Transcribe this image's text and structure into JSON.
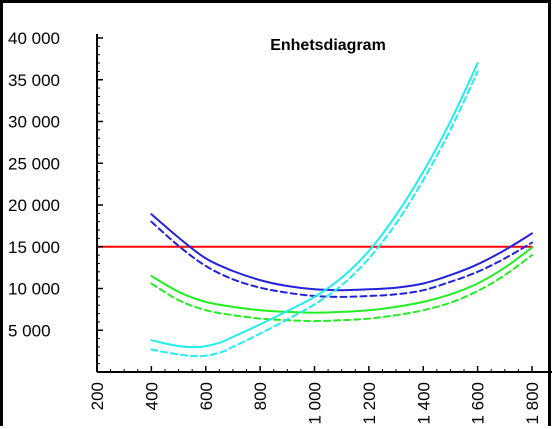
{
  "chart_data": {
    "type": "line",
    "title": "Enhetsdiagram",
    "xlabel": "",
    "ylabel": "",
    "xlim": [
      200,
      1800
    ],
    "ylim": [
      0,
      40000
    ],
    "x_ticks": [
      200,
      400,
      600,
      800,
      1000,
      1200,
      1400,
      1600,
      1800
    ],
    "x_tick_labels": [
      "200",
      "400",
      "600",
      "800",
      "1 000",
      "1 200",
      "1 400",
      "1 600",
      "1 800"
    ],
    "y_ticks": [
      5000,
      10000,
      15000,
      20000,
      25000,
      30000,
      35000,
      40000
    ],
    "y_tick_labels": [
      "5 000",
      "10 000",
      "15 000",
      "20 000",
      "25 000",
      "30 000",
      "35 000",
      "40 000"
    ],
    "grid": false,
    "legend": "none",
    "series": [
      {
        "color": "#ff0000",
        "dashed": false,
        "width": 2,
        "x": [
          200,
          1800
        ],
        "y": [
          15000,
          15000
        ]
      },
      {
        "color": "#2222dd",
        "dashed": false,
        "width": 2,
        "x": [
          400,
          500,
          600,
          700,
          800,
          900,
          1000,
          1100,
          1200,
          1300,
          1400,
          1500,
          1600,
          1700,
          1800
        ],
        "y": [
          18900,
          16100,
          13600,
          12100,
          11000,
          10300,
          9900,
          9800,
          9900,
          10100,
          10600,
          11600,
          12900,
          14600,
          16600
        ]
      },
      {
        "color": "#2222dd",
        "dashed": true,
        "width": 2,
        "x": [
          400,
          500,
          600,
          700,
          800,
          900,
          1000,
          1100,
          1200,
          1300,
          1400,
          1500,
          1600,
          1700,
          1800
        ],
        "y": [
          18000,
          15100,
          12700,
          11100,
          10100,
          9500,
          9100,
          9000,
          9100,
          9300,
          9800,
          10800,
          12000,
          13600,
          15500
        ]
      },
      {
        "color": "#22ee22",
        "dashed": false,
        "width": 2,
        "x": [
          400,
          500,
          600,
          700,
          800,
          900,
          1000,
          1100,
          1200,
          1300,
          1400,
          1500,
          1600,
          1700,
          1800
        ],
        "y": [
          11500,
          9600,
          8400,
          7800,
          7400,
          7200,
          7100,
          7200,
          7400,
          7800,
          8400,
          9300,
          10600,
          12500,
          14900
        ]
      },
      {
        "color": "#22ee22",
        "dashed": true,
        "width": 2,
        "x": [
          400,
          500,
          600,
          700,
          800,
          900,
          1000,
          1100,
          1200,
          1300,
          1400,
          1500,
          1600,
          1700,
          1800
        ],
        "y": [
          10600,
          8600,
          7400,
          6800,
          6400,
          6200,
          6100,
          6200,
          6400,
          6800,
          7400,
          8300,
          9700,
          11600,
          14000
        ]
      },
      {
        "color": "#22eeee",
        "dashed": false,
        "width": 2,
        "x": [
          400,
          500,
          580,
          650,
          700,
          800,
          900,
          1000,
          1100,
          1200,
          1300,
          1400,
          1500,
          1600
        ],
        "y": [
          3800,
          3100,
          3000,
          3500,
          4200,
          5700,
          7300,
          9000,
          11300,
          14500,
          18800,
          24000,
          30000,
          37000
        ]
      },
      {
        "color": "#22eeee",
        "dashed": true,
        "width": 2,
        "x": [
          400,
          500,
          580,
          650,
          700,
          800,
          900,
          1000,
          1100,
          1200,
          1300,
          1400,
          1500,
          1600
        ],
        "y": [
          2700,
          2100,
          1900,
          2300,
          3000,
          4600,
          6300,
          8100,
          10400,
          13600,
          17800,
          23000,
          29000,
          36000
        ]
      }
    ]
  }
}
